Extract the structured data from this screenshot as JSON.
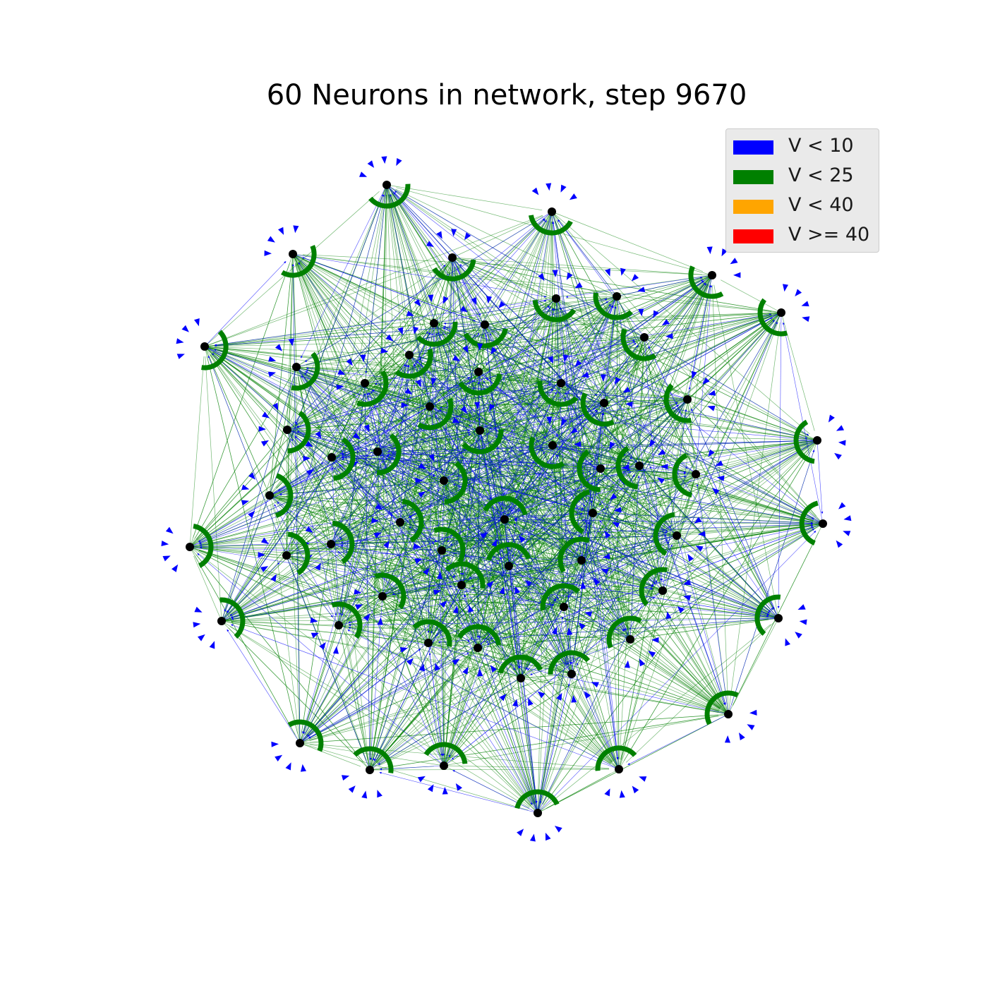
{
  "title": "60 Neurons in network, step 9670",
  "legend": [
    {
      "label": "V < 10",
      "color": "#0000ff"
    },
    {
      "label": "V < 25",
      "color": "#008000"
    },
    {
      "label": "V < 40",
      "color": "#ffa500"
    },
    {
      "label": "V >= 40",
      "color": "#ff0000"
    }
  ],
  "colors": {
    "node": "#000000",
    "edge_low": "#0000ff",
    "edge_mid": "#008000"
  },
  "network": {
    "neuron_count": 60,
    "step": 9670,
    "neuron_state": "V < 25"
  }
}
